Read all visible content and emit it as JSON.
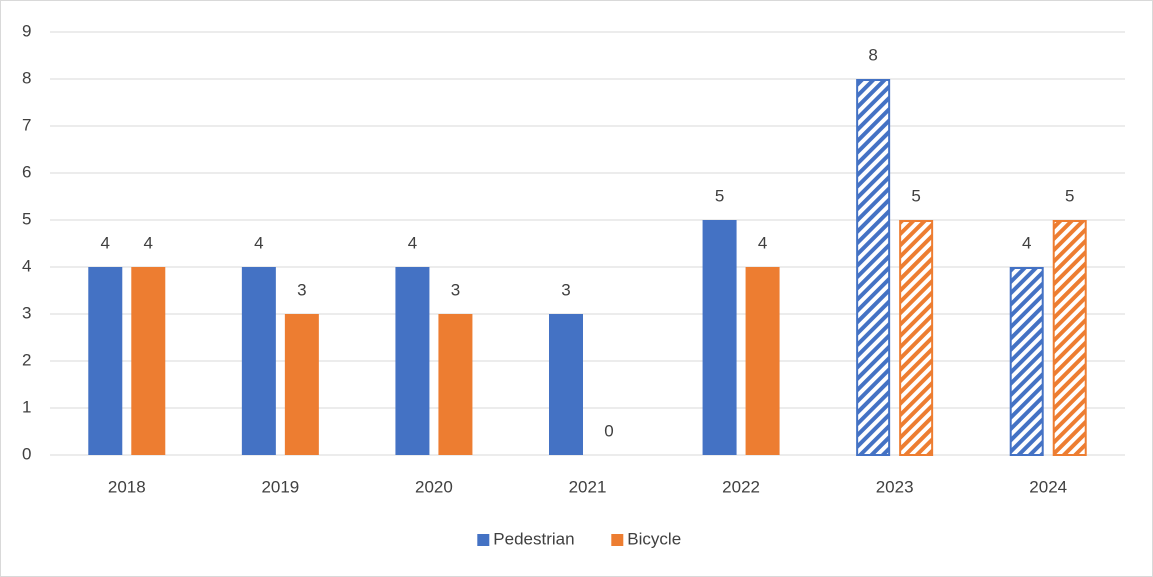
{
  "chart_data": {
    "type": "bar",
    "categories": [
      "2018",
      "2019",
      "2020",
      "2021",
      "2022",
      "2023",
      "2024"
    ],
    "series": [
      {
        "name": "Pedestrian",
        "color": "#4472c4",
        "values": [
          4,
          4,
          4,
          3,
          5,
          8,
          4
        ]
      },
      {
        "name": "Bicycle",
        "color": "#ed7d31",
        "values": [
          4,
          3,
          3,
          0,
          4,
          5,
          5
        ]
      }
    ],
    "hatched": [
      false,
      false,
      false,
      false,
      false,
      true,
      true
    ],
    "ylim": [
      0,
      9
    ],
    "yticks": [
      0,
      1,
      2,
      3,
      4,
      5,
      6,
      7,
      8,
      9
    ],
    "grid": true,
    "data_labels": true,
    "legend": "bottom"
  }
}
